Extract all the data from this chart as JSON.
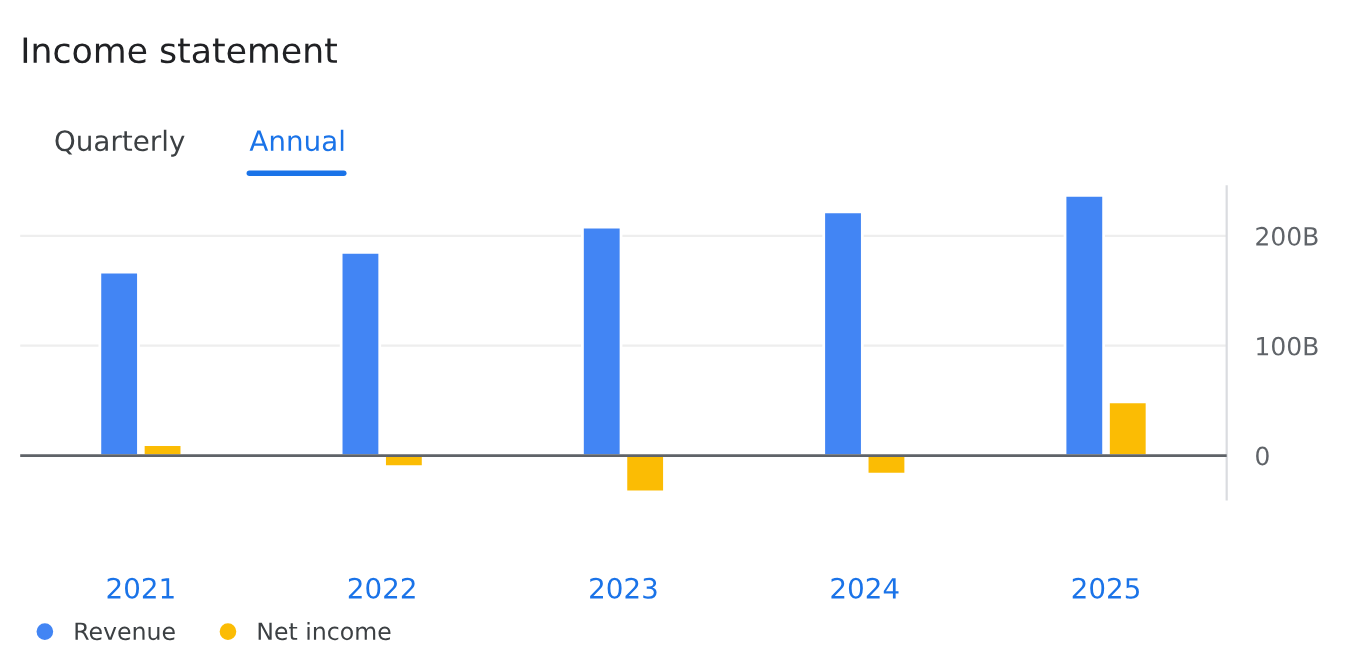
{
  "chart_data": {
    "type": "bar",
    "title": "Income statement",
    "annotations": [
      "Quarterly",
      "Annual"
    ],
    "categories": [
      "2021",
      "2022",
      "2023",
      "2024",
      "2025"
    ],
    "series": [
      {
        "name": "Revenue",
        "color": "#4285f4",
        "values": [
          167,
          185,
          208,
          222,
          237
        ]
      },
      {
        "name": "Net income",
        "color": "#fbbc04",
        "values": [
          10,
          -10,
          -33,
          -17,
          49
        ]
      }
    ],
    "ylim": [
      -40,
      245
    ],
    "yticks": [
      {
        "value": 0,
        "label": "0"
      },
      {
        "value": 100,
        "label": "100B"
      },
      {
        "value": 200,
        "label": "200B"
      }
    ],
    "grid": "y",
    "legend": "bottom left"
  }
}
